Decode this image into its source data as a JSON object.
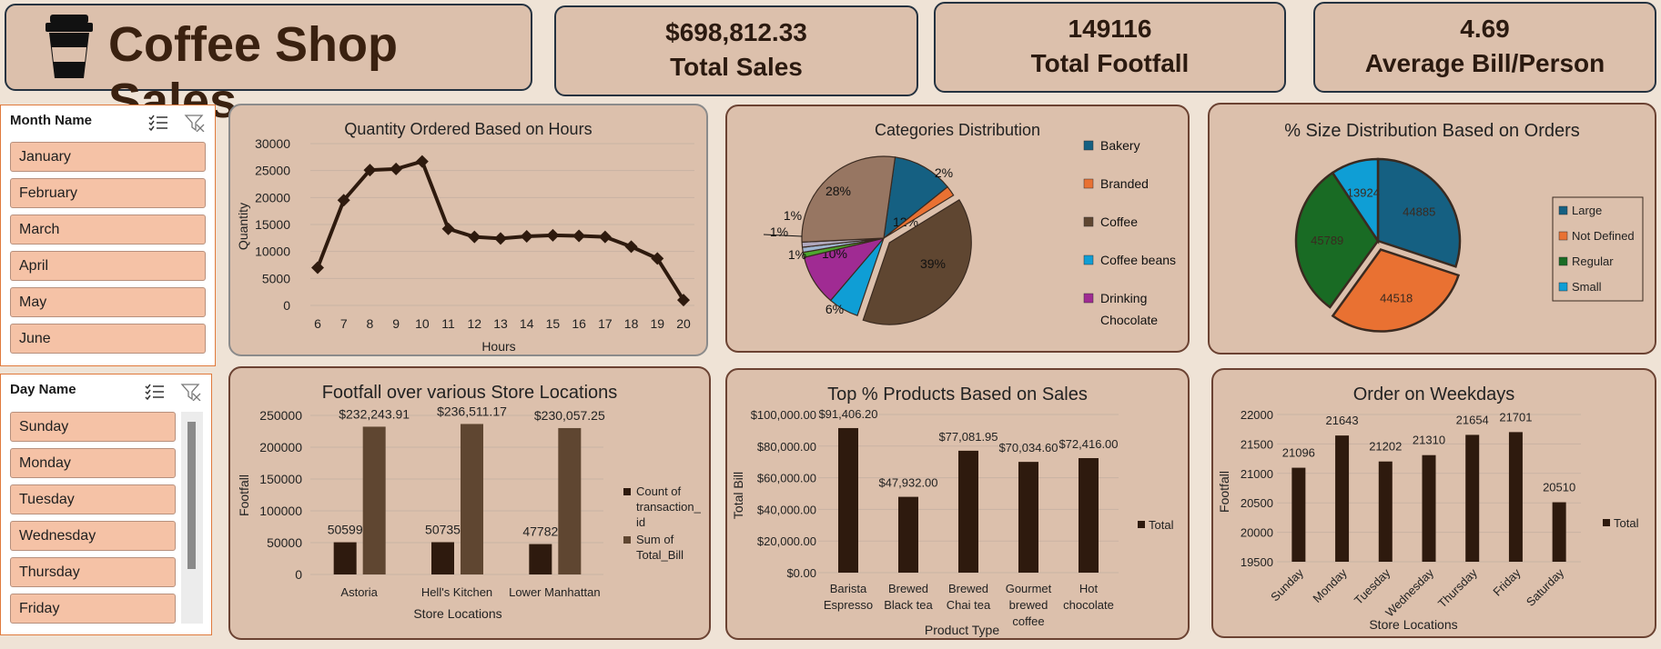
{
  "header": {
    "title": "Coffee Shop Sales",
    "icon": "coffee-cup-icon"
  },
  "kpis": {
    "sales": {
      "value": "$698,812.33",
      "label": "Total Sales"
    },
    "footfall": {
      "value": "149116",
      "label": "Total Footfall"
    },
    "avg": {
      "value": "4.69",
      "label": "Average Bill/Person"
    }
  },
  "slicers": {
    "month": {
      "title": "Month Name",
      "items": [
        "January",
        "February",
        "March",
        "April",
        "May",
        "June"
      ]
    },
    "day": {
      "title": "Day Name",
      "items": [
        "Sunday",
        "Monday",
        "Tuesday",
        "Wednesday",
        "Thursday",
        "Friday"
      ]
    }
  },
  "colors": {
    "dark_brown": "#2e1a0e",
    "mid_brown": "#5f4631",
    "blue": "#156082",
    "orange": "#e97132",
    "green": "#196b24",
    "light_blue": "#0f9ed5",
    "purple": "#a02b93"
  },
  "chart_data": [
    {
      "type": "line",
      "title": "Quantity Ordered Based on Hours",
      "xlabel": "Hours",
      "ylabel": "Quantity",
      "x": [
        6,
        7,
        8,
        9,
        10,
        11,
        12,
        13,
        14,
        15,
        16,
        17,
        18,
        19,
        20
      ],
      "values": [
        7000,
        19500,
        25100,
        25300,
        26700,
        14200,
        12700,
        12400,
        12800,
        13000,
        12900,
        12700,
        10900,
        8700,
        1000
      ],
      "ylim": [
        0,
        30000
      ],
      "yticks": [
        "30000",
        "25000",
        "20000",
        "15000",
        "10000",
        "5000",
        "0"
      ],
      "grid": true
    },
    {
      "type": "pie",
      "title": "Categories Distribution",
      "slices": [
        {
          "name": "Bakery",
          "value": 12,
          "label": "12%",
          "color": "#156082"
        },
        {
          "name": "Branded",
          "value": 2,
          "label": "2%",
          "color": "#e97132"
        },
        {
          "name": "Coffee",
          "value": 39,
          "label": "39%",
          "color": "#5f4631"
        },
        {
          "name": "Coffee beans",
          "value": 6,
          "label": "6%",
          "color": "#0f9ed5"
        },
        {
          "name": "Drinking Chocolate",
          "value": 10,
          "label": "10%",
          "color": "#a02b93"
        },
        {
          "name": "",
          "value": 1,
          "label": "1%",
          "color": "#4ea72e"
        },
        {
          "name": "",
          "value": 1,
          "label": "1%",
          "color": "#9fb4d0"
        },
        {
          "name": "",
          "value": 1,
          "label": "1%",
          "color": "#b0a8bd"
        },
        {
          "name": "",
          "value": 28,
          "label": "28%",
          "color": "#977662"
        }
      ],
      "legend": [
        "Bakery",
        "Branded",
        "Coffee",
        "Coffee beans",
        "Drinking",
        "Chocolate"
      ],
      "legend_position": "right"
    },
    {
      "type": "pie",
      "title": "% Size Distribution Based on Orders",
      "slices": [
        {
          "name": "Large",
          "value": 44885,
          "label": "44885",
          "color": "#156082"
        },
        {
          "name": "Not Defined",
          "value": 44518,
          "label": "44518",
          "color": "#e97132"
        },
        {
          "name": "Regular",
          "value": 45789,
          "label": "45789",
          "color": "#196b24"
        },
        {
          "name": "Small",
          "value": 13924,
          "label": "13924",
          "color": "#0f9ed5"
        }
      ],
      "legend_position": "right"
    },
    {
      "type": "bar",
      "title": "Footfall over various Store Locations",
      "xlabel": "Store Locations",
      "ylabel": "Footfall",
      "categories": [
        "Astoria",
        "Hell's Kitchen",
        "Lower Manhattan"
      ],
      "series": [
        {
          "name": "Count of transaction_id",
          "values": [
            50599,
            50735,
            47782
          ],
          "labels": [
            "50599",
            "50735",
            "47782"
          ]
        },
        {
          "name": "Sum of Total_Bill",
          "values": [
            232243.91,
            236511.17,
            230057.25
          ],
          "labels": [
            "$232,243.91",
            "$236,511.17",
            "$230,057.25"
          ]
        }
      ],
      "legend_lines": [
        [
          "Count of",
          "transaction_",
          "id"
        ],
        [
          "Sum of",
          "Total_Bill"
        ]
      ],
      "ylim": [
        0,
        250000
      ],
      "yticks": [
        "250000",
        "200000",
        "150000",
        "100000",
        "50000",
        "0"
      ]
    },
    {
      "type": "bar",
      "title": "Top % Products Based on Sales",
      "xlabel": "Product Type",
      "ylabel": "Total Bill",
      "categories": [
        "Barista Espresso",
        "Brewed Black tea",
        "Brewed Chai tea",
        "Gourmet brewed coffee",
        "Hot chocolate"
      ],
      "category_lines": [
        [
          "Barista",
          "Espresso"
        ],
        [
          "Brewed",
          "Black tea"
        ],
        [
          "Brewed",
          "Chai tea"
        ],
        [
          "Gourmet",
          "brewed",
          "coffee"
        ],
        [
          "Hot",
          "chocolate"
        ]
      ],
      "values": [
        91406.2,
        47932.0,
        77081.95,
        70034.6,
        72416.0
      ],
      "labels": [
        "$91,406.20",
        "$47,932.00",
        "$77,081.95",
        "$70,034.60",
        "$72,416.00"
      ],
      "legend": "Total",
      "ylim": [
        0,
        100000
      ],
      "yticks": [
        "$100,000.00",
        "$80,000.00",
        "$60,000.00",
        "$40,000.00",
        "$20,000.00",
        "$0.00"
      ]
    },
    {
      "type": "bar",
      "title": "Order on Weekdays",
      "xlabel": "Store Locations",
      "ylabel": "Footfall",
      "categories": [
        "Sunday",
        "Monday",
        "Tuesday",
        "Wednesday",
        "Thursday",
        "Friday",
        "Saturday"
      ],
      "values": [
        21096,
        21643,
        21202,
        21310,
        21654,
        21701,
        20510
      ],
      "labels": [
        "21096",
        "21643",
        "21202",
        "21310",
        "21654",
        "21701",
        "20510"
      ],
      "legend": "Total",
      "ylim": [
        19500,
        22000
      ],
      "yticks": [
        "22000",
        "21500",
        "21000",
        "20500",
        "20000",
        "19500"
      ]
    }
  ]
}
